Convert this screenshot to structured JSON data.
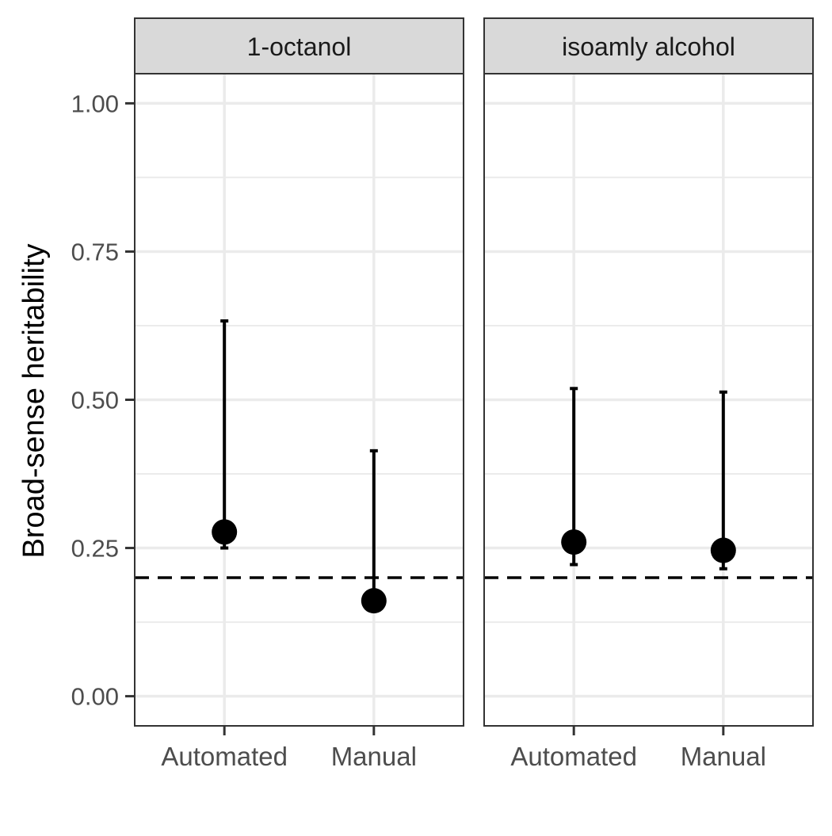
{
  "chart_data": {
    "type": "scatter",
    "ylabel": "Broad-sense heritability",
    "xlabel": "",
    "ylim": [
      -0.05,
      1.05
    ],
    "yticks": [
      0.0,
      0.25,
      0.5,
      0.75,
      1.0
    ],
    "ytick_labels": [
      "0.00",
      "0.25",
      "0.50",
      "0.75",
      "1.00"
    ],
    "categories": [
      "Automated",
      "Manual"
    ],
    "reference_line": {
      "y": 0.2,
      "style": "dashed"
    },
    "grid": true,
    "colors": {
      "point": "#000000",
      "grid": "#ebebeb",
      "strip": "#d9d9d9",
      "border": "#333333"
    },
    "panels": [
      {
        "title": "1-octanol",
        "points": [
          {
            "x": "Automated",
            "y": 0.277,
            "ymin": 0.25,
            "ymax": 0.633
          },
          {
            "x": "Manual",
            "y": 0.161,
            "ymin": 0.161,
            "ymax": 0.414
          }
        ]
      },
      {
        "title": "isoamly alcohol",
        "points": [
          {
            "x": "Automated",
            "y": 0.26,
            "ymin": 0.222,
            "ymax": 0.519
          },
          {
            "x": "Manual",
            "y": 0.246,
            "ymin": 0.215,
            "ymax": 0.513
          }
        ]
      }
    ]
  }
}
